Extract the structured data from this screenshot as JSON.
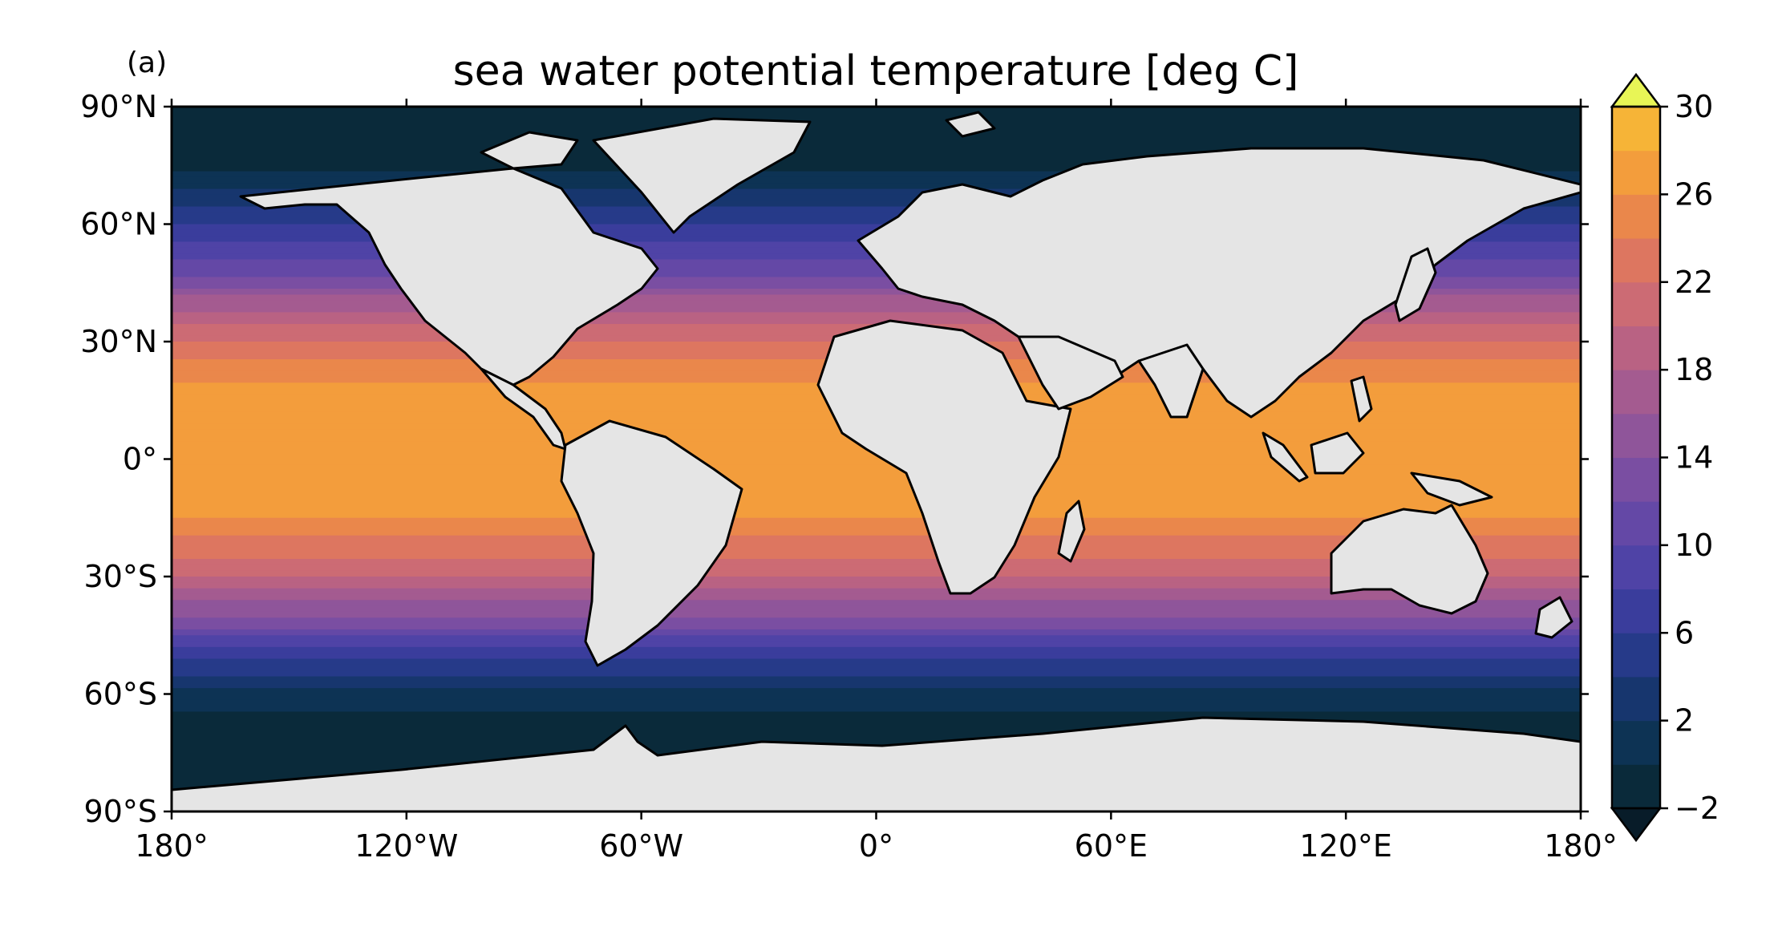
{
  "panel_label": "(a)",
  "title": "sea water potential temperature [deg C]",
  "chart_data": {
    "type": "heatmap",
    "title": "sea water potential temperature [deg C]",
    "xlabel": "",
    "ylabel": "",
    "projection": "PlateCarree",
    "xlim": [
      -180,
      180
    ],
    "ylim": [
      -90,
      90
    ],
    "x_ticks": [
      {
        "value": -180,
        "label": "180°"
      },
      {
        "value": -120,
        "label": "120°W"
      },
      {
        "value": -60,
        "label": "60°W"
      },
      {
        "value": 0,
        "label": "0°"
      },
      {
        "value": 60,
        "label": "60°E"
      },
      {
        "value": 120,
        "label": "120°E"
      },
      {
        "value": 180,
        "label": "180°"
      }
    ],
    "y_ticks": [
      {
        "value": 90,
        "label": "90°N"
      },
      {
        "value": 60,
        "label": "60°N"
      },
      {
        "value": 30,
        "label": "30°N"
      },
      {
        "value": 0,
        "label": "0°"
      },
      {
        "value": -30,
        "label": "30°S"
      },
      {
        "value": -60,
        "label": "60°S"
      },
      {
        "value": -90,
        "label": "90°S"
      }
    ],
    "colorbar": {
      "min": -2,
      "max": 30,
      "step": 2,
      "extend": "both",
      "ticks": [
        {
          "value": 30,
          "label": "30"
        },
        {
          "value": 26,
          "label": "26"
        },
        {
          "value": 22,
          "label": "22"
        },
        {
          "value": 18,
          "label": "18"
        },
        {
          "value": 14,
          "label": "14"
        },
        {
          "value": 10,
          "label": "10"
        },
        {
          "value": 6,
          "label": "6"
        },
        {
          "value": 2,
          "label": "2"
        },
        {
          "value": -2,
          "label": "−2"
        }
      ],
      "colors": [
        "#0a2a3a",
        "#0d3354",
        "#17366e",
        "#263a89",
        "#3a3d9c",
        "#4f43a6",
        "#6448a6",
        "#7a4ea2",
        "#8f559a",
        "#a45b90",
        "#b96283",
        "#cc6b74",
        "#dd7660",
        "#ea874b",
        "#f39d3c",
        "#f6b437",
        "#f4c940",
        "#eedd47",
        "#e3ed52"
      ],
      "over_color": "#e8f556",
      "under_color": "#081c29"
    },
    "land_color": "#e5e5e5",
    "zonal_mean_profile": [
      {
        "lat": 85,
        "value": -1.8
      },
      {
        "lat": 75,
        "value": -1.0
      },
      {
        "lat": 65,
        "value": 4.0
      },
      {
        "lat": 55,
        "value": 8.0
      },
      {
        "lat": 45,
        "value": 13.0
      },
      {
        "lat": 40,
        "value": 17.0
      },
      {
        "lat": 30,
        "value": 22.0
      },
      {
        "lat": 20,
        "value": 26.0
      },
      {
        "lat": 10,
        "value": 28.0
      },
      {
        "lat": 0,
        "value": 27.0
      },
      {
        "lat": -10,
        "value": 27.5
      },
      {
        "lat": -20,
        "value": 24.0
      },
      {
        "lat": -30,
        "value": 20.0
      },
      {
        "lat": -40,
        "value": 14.0
      },
      {
        "lat": -50,
        "value": 7.0
      },
      {
        "lat": -60,
        "value": 1.0
      },
      {
        "lat": -70,
        "value": -1.5
      },
      {
        "lat": -80,
        "value": -1.8
      }
    ]
  }
}
